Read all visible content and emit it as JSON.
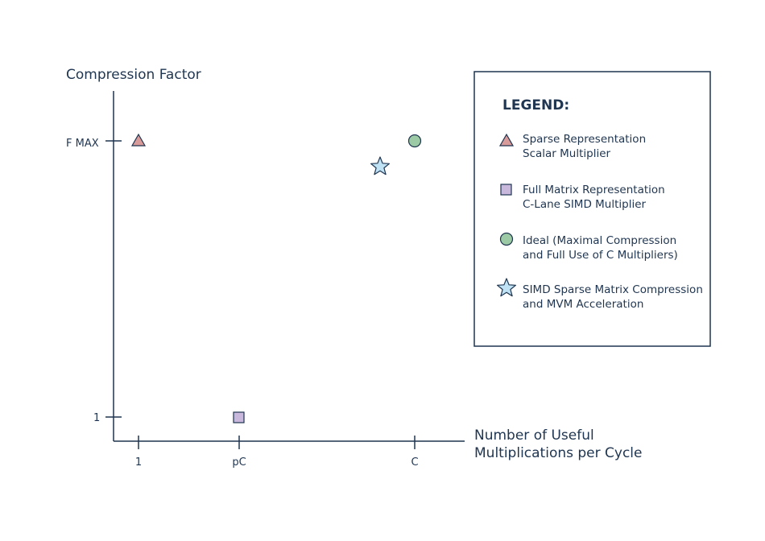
{
  "chart_data": {
    "type": "scatter",
    "xlabel": [
      "Number of Useful",
      "Multiplications per Cycle"
    ],
    "ylabel": "Compression Factor",
    "x_ticks": [
      "1",
      "pC",
      "C"
    ],
    "y_ticks": [
      "1",
      "F MAX"
    ],
    "legend_title": "LEGEND:",
    "legend_position": "right",
    "grid": false,
    "series": [
      {
        "name": [
          "Sparse Representation",
          "Scalar Multiplier"
        ],
        "marker": "triangle",
        "color": "#d99a9a",
        "x": "1",
        "y": "F MAX"
      },
      {
        "name": [
          "Full Matrix Representation",
          "C-Lane SIMD Multiplier"
        ],
        "marker": "square",
        "color": "#c9b8dc",
        "x": "pC",
        "y": "1"
      },
      {
        "name": [
          "Ideal (Maximal Compression",
          "and Full Use of C Multipliers)"
        ],
        "marker": "circle",
        "color": "#9ccaa4",
        "x": "C",
        "y": "F MAX"
      },
      {
        "name": [
          "SIMD Sparse Matrix Compression",
          "and MVM Acceleration"
        ],
        "marker": "star",
        "color": "#bfe3f5",
        "x": "near C",
        "y": "near F MAX"
      }
    ]
  }
}
